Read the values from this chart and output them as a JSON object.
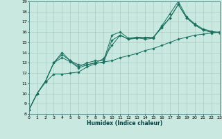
{
  "xlabel": "Humidex (Indice chaleur)",
  "bg_color": "#c8e8e0",
  "grid_color": "#a8ccc4",
  "line_color": "#1a7060",
  "xlim": [
    0,
    23
  ],
  "ylim": [
    8,
    19
  ],
  "xticks": [
    0,
    1,
    2,
    3,
    4,
    5,
    6,
    7,
    8,
    9,
    10,
    11,
    12,
    13,
    14,
    15,
    16,
    17,
    18,
    19,
    20,
    21,
    22,
    23
  ],
  "yticks": [
    8,
    9,
    10,
    11,
    12,
    13,
    14,
    15,
    16,
    17,
    18,
    19
  ],
  "series": [
    [
      8.4,
      10.0,
      11.2,
      13.0,
      13.8,
      13.2,
      12.6,
      13.0,
      13.2,
      13.2,
      15.7,
      16.0,
      15.4,
      15.5,
      15.3,
      15.4,
      16.6,
      17.8,
      19.0,
      17.5,
      16.8,
      16.3,
      16.1,
      15.9
    ],
    [
      8.4,
      10.0,
      11.2,
      13.0,
      14.0,
      13.2,
      12.8,
      12.8,
      13.0,
      13.4,
      14.7,
      15.7,
      15.3,
      15.4,
      15.4,
      15.5,
      16.5,
      17.4,
      18.7,
      17.4,
      16.7,
      16.2,
      16.0,
      16.0
    ],
    [
      8.4,
      10.0,
      11.1,
      11.9,
      11.9,
      12.0,
      12.1,
      12.6,
      12.9,
      13.1,
      13.2,
      13.5,
      13.7,
      13.9,
      14.2,
      14.4,
      14.7,
      15.0,
      15.3,
      15.5,
      15.7,
      15.8,
      15.9,
      16.0
    ],
    [
      8.4,
      10.0,
      11.2,
      13.0,
      13.5,
      13.1,
      12.5,
      12.8,
      13.0,
      13.0,
      15.2,
      15.7,
      15.3,
      15.5,
      15.5,
      15.5,
      16.4,
      17.4,
      18.7,
      17.4,
      16.7,
      16.2,
      16.0,
      16.0
    ]
  ]
}
